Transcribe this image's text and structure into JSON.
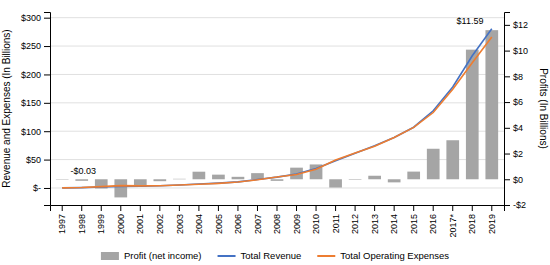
{
  "chart_data": {
    "type": "bar",
    "categories": [
      "1997",
      "1998",
      "1999",
      "2000",
      "2001",
      "2002",
      "2003",
      "2004",
      "2005",
      "2006",
      "2007",
      "2008",
      "2009",
      "2010",
      "2011",
      "2012",
      "2013",
      "2014",
      "2015",
      "2016",
      "2017*",
      "2018",
      "2019"
    ],
    "series": [
      {
        "name": "Profit (net income)",
        "type": "bar",
        "axis": "y2",
        "color": "#a5a5a5",
        "values": [
          -0.03,
          -0.12,
          -0.72,
          -1.41,
          -0.57,
          -0.15,
          0.035,
          0.588,
          0.359,
          0.19,
          0.476,
          -0.124,
          0.902,
          1.152,
          -0.644,
          -0.039,
          0.274,
          -0.241,
          0.596,
          2.371,
          3.033,
          10.073,
          11.588
        ]
      },
      {
        "name": "Total Revenue",
        "type": "line",
        "color": "#4472c4",
        "values": [
          0.148,
          0.61,
          1.64,
          2.762,
          3.122,
          3.933,
          5.264,
          6.921,
          8.49,
          10.711,
          14.835,
          19.166,
          24.509,
          34.204,
          48.077,
          61.093,
          74.452,
          88.988,
          107.006,
          135.987,
          177.866,
          232.887,
          280.522
        ]
      },
      {
        "name": "Total Operating Expenses",
        "type": "line",
        "color": "#ed7d31",
        "values": [
          0.177,
          0.739,
          2.38,
          4.159,
          3.702,
          4.041,
          5.183,
          6.596,
          8.164,
          10.439,
          14.412,
          19.387,
          23.628,
          32.89,
          49.175,
          61.577,
          73.707,
          88.81,
          106.699,
          132.888,
          173.76,
          220.466,
          265.981
        ]
      }
    ],
    "y_label": "Revenue and Expenses (In Billions)",
    "y2_label": "Profits (In Billions)",
    "ylim": [
      -30,
      310
    ],
    "yticks": [
      {
        "value": 0,
        "label": "$-"
      },
      {
        "value": 50,
        "label": "$50"
      },
      {
        "value": 100,
        "label": "$100"
      },
      {
        "value": 150,
        "label": "$150"
      },
      {
        "value": 200,
        "label": "$200"
      },
      {
        "value": 250,
        "label": "$250"
      },
      {
        "value": 300,
        "label": "$300"
      }
    ],
    "y2lim": [
      -2.0,
      13.0
    ],
    "y2ticks": [
      {
        "value": -2,
        "label": "-$2"
      },
      {
        "value": 0,
        "label": "$0"
      },
      {
        "value": 2,
        "label": "$2"
      },
      {
        "value": 4,
        "label": "$4"
      },
      {
        "value": 6,
        "label": "$6"
      },
      {
        "value": 8,
        "label": "$8"
      },
      {
        "value": 10,
        "label": "$10"
      },
      {
        "value": 12,
        "label": "$12"
      }
    ],
    "annotations": [
      {
        "text": "-$0.03",
        "category": "1997",
        "value": -0.03,
        "axis": "y2"
      },
      {
        "text": "$11.59",
        "category": "2019",
        "value": 11.588,
        "axis": "y2"
      }
    ],
    "grid": true,
    "legend": "bottom"
  }
}
